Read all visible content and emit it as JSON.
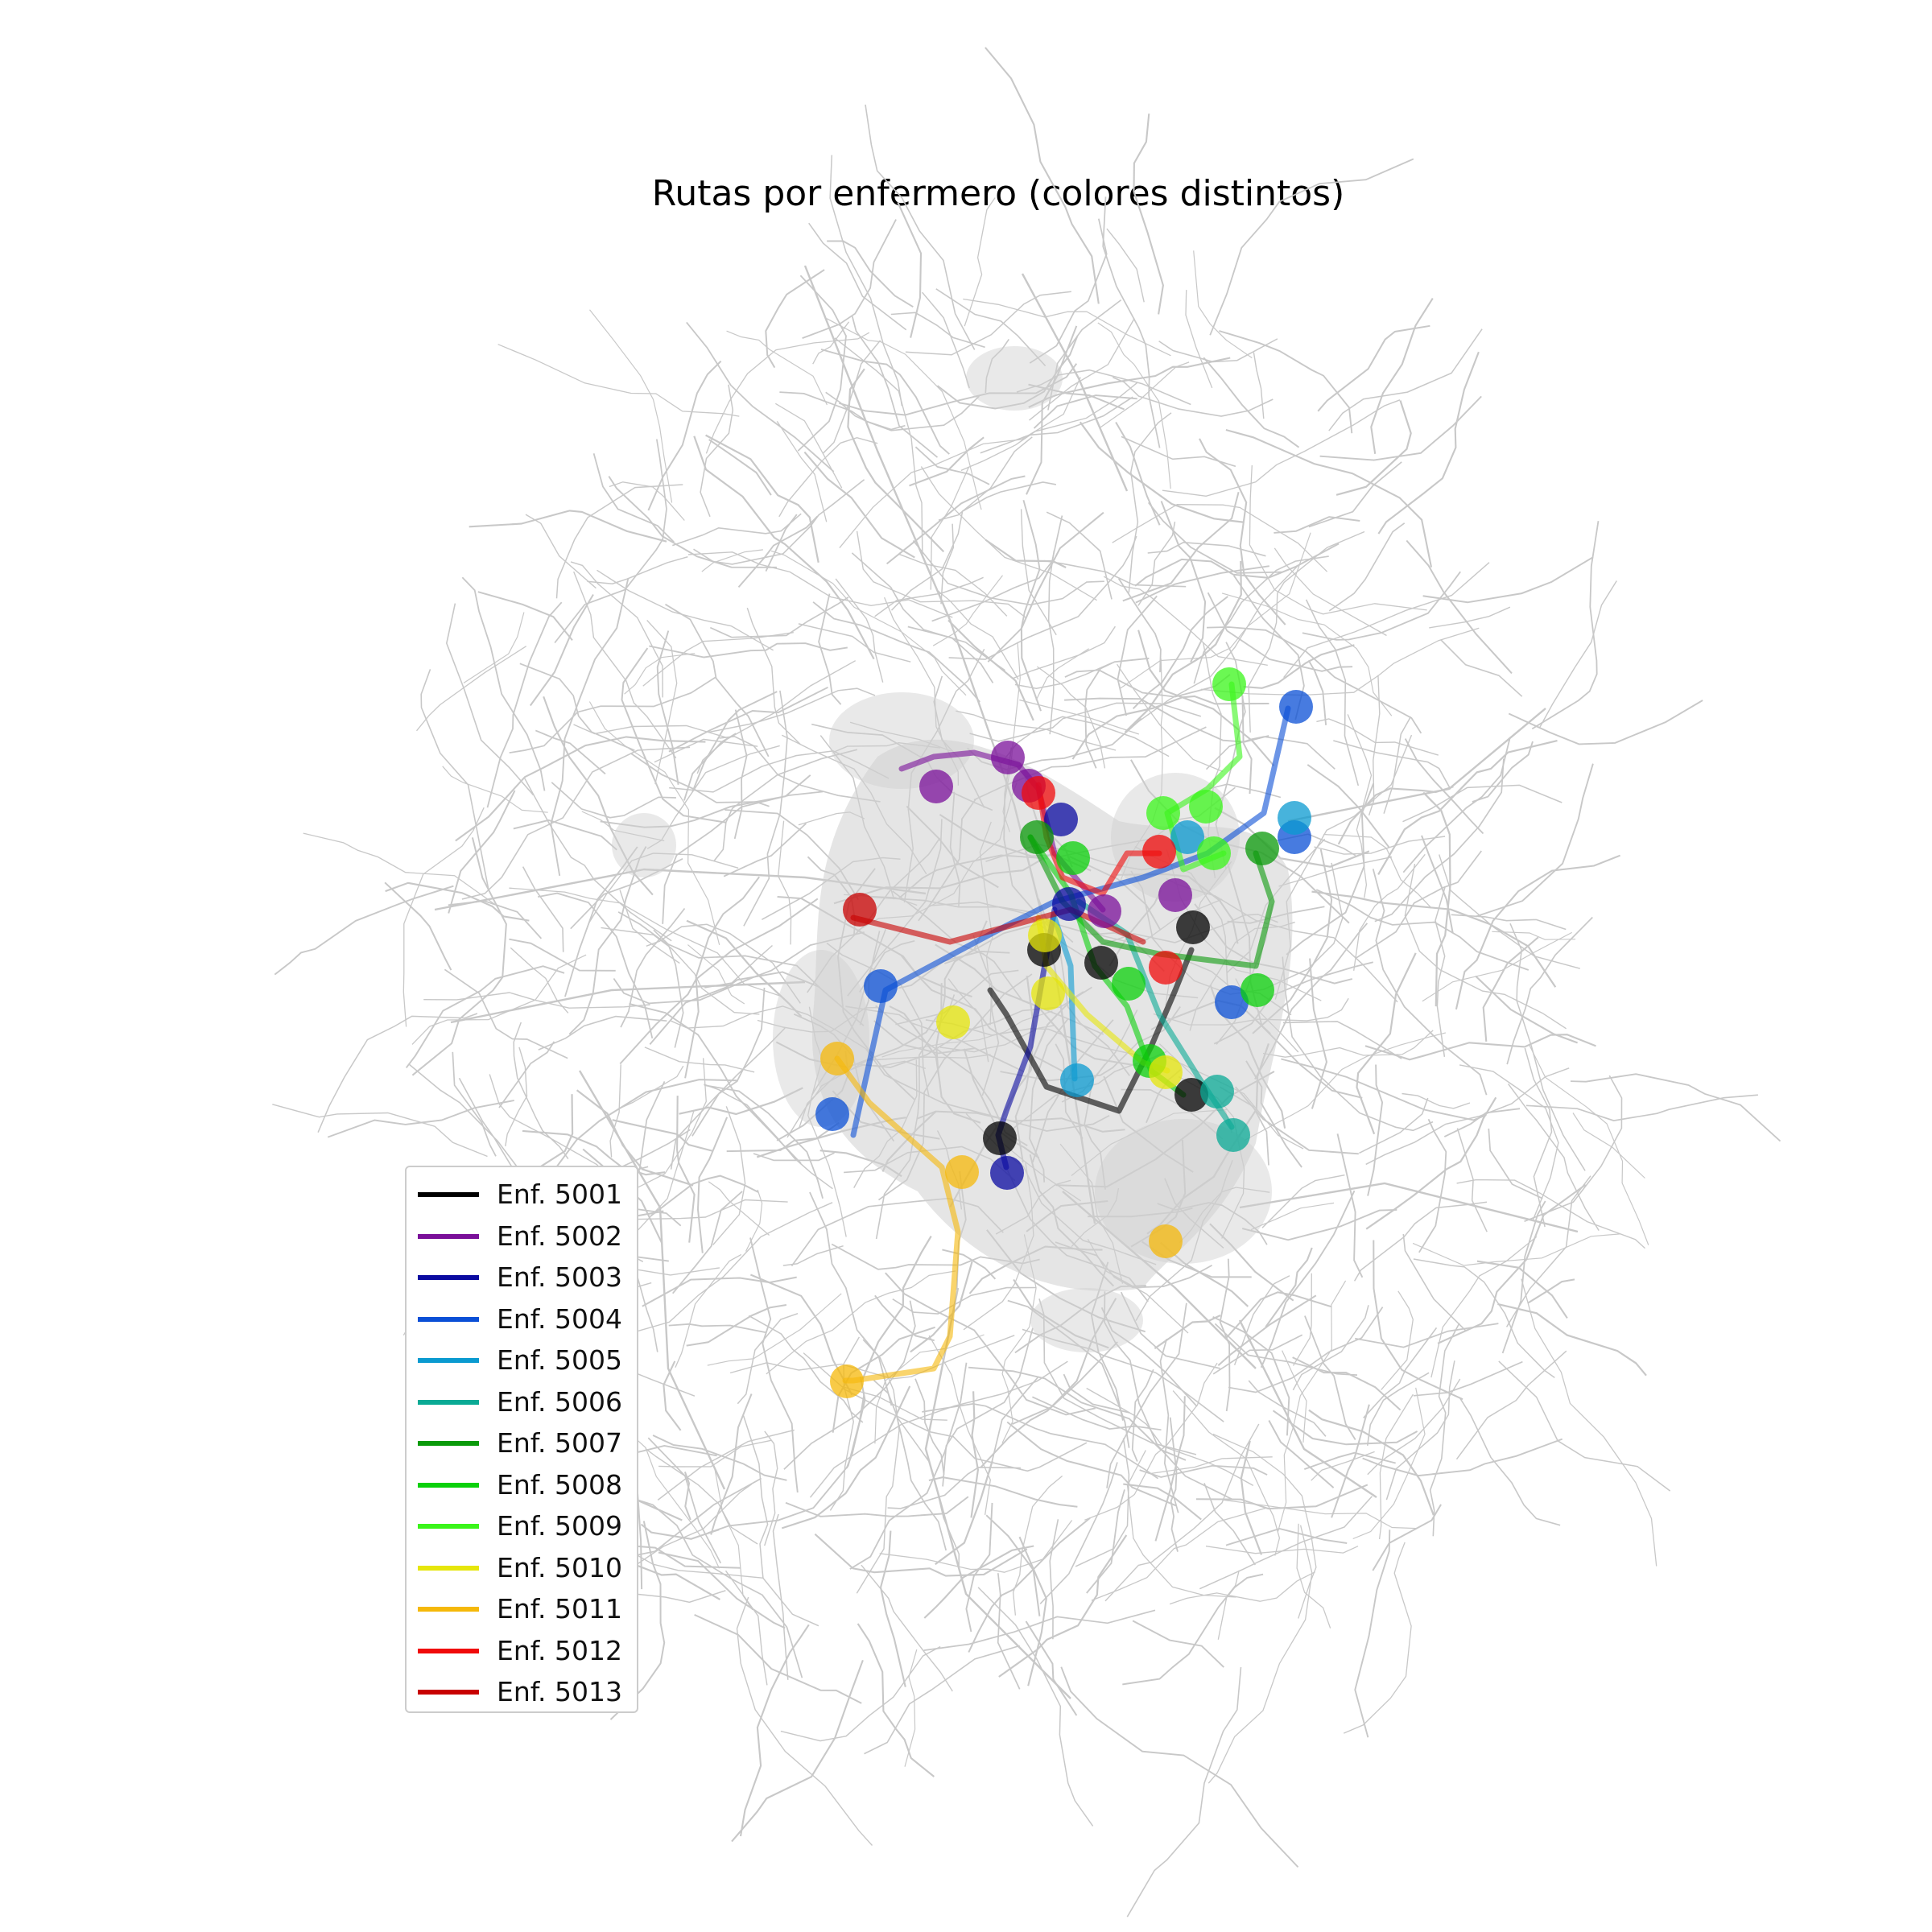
{
  "title": "Rutas por enfermero (colores distintos)",
  "legend_position": "lower-left",
  "base_map_color": "#c8c8c8",
  "nurses": [
    {
      "label": "Enf. 5001",
      "color": "#000000"
    },
    {
      "label": "Enf. 5002",
      "color": "#7a0f99"
    },
    {
      "label": "Enf. 5003",
      "color": "#0a0aa0"
    },
    {
      "label": "Enf. 5004",
      "color": "#0a4fd6"
    },
    {
      "label": "Enf. 5005",
      "color": "#0a9ad0"
    },
    {
      "label": "Enf. 5006",
      "color": "#0aaa95"
    },
    {
      "label": "Enf. 5007",
      "color": "#0a9a0a"
    },
    {
      "label": "Enf. 5008",
      "color": "#0ad00a"
    },
    {
      "label": "Enf. 5009",
      "color": "#3af51a"
    },
    {
      "label": "Enf. 5010",
      "color": "#e6e60a"
    },
    {
      "label": "Enf. 5011",
      "color": "#f5b80a"
    },
    {
      "label": "Enf. 5012",
      "color": "#f00a0a"
    },
    {
      "label": "Enf. 5013",
      "color": "#c80000"
    }
  ]
}
